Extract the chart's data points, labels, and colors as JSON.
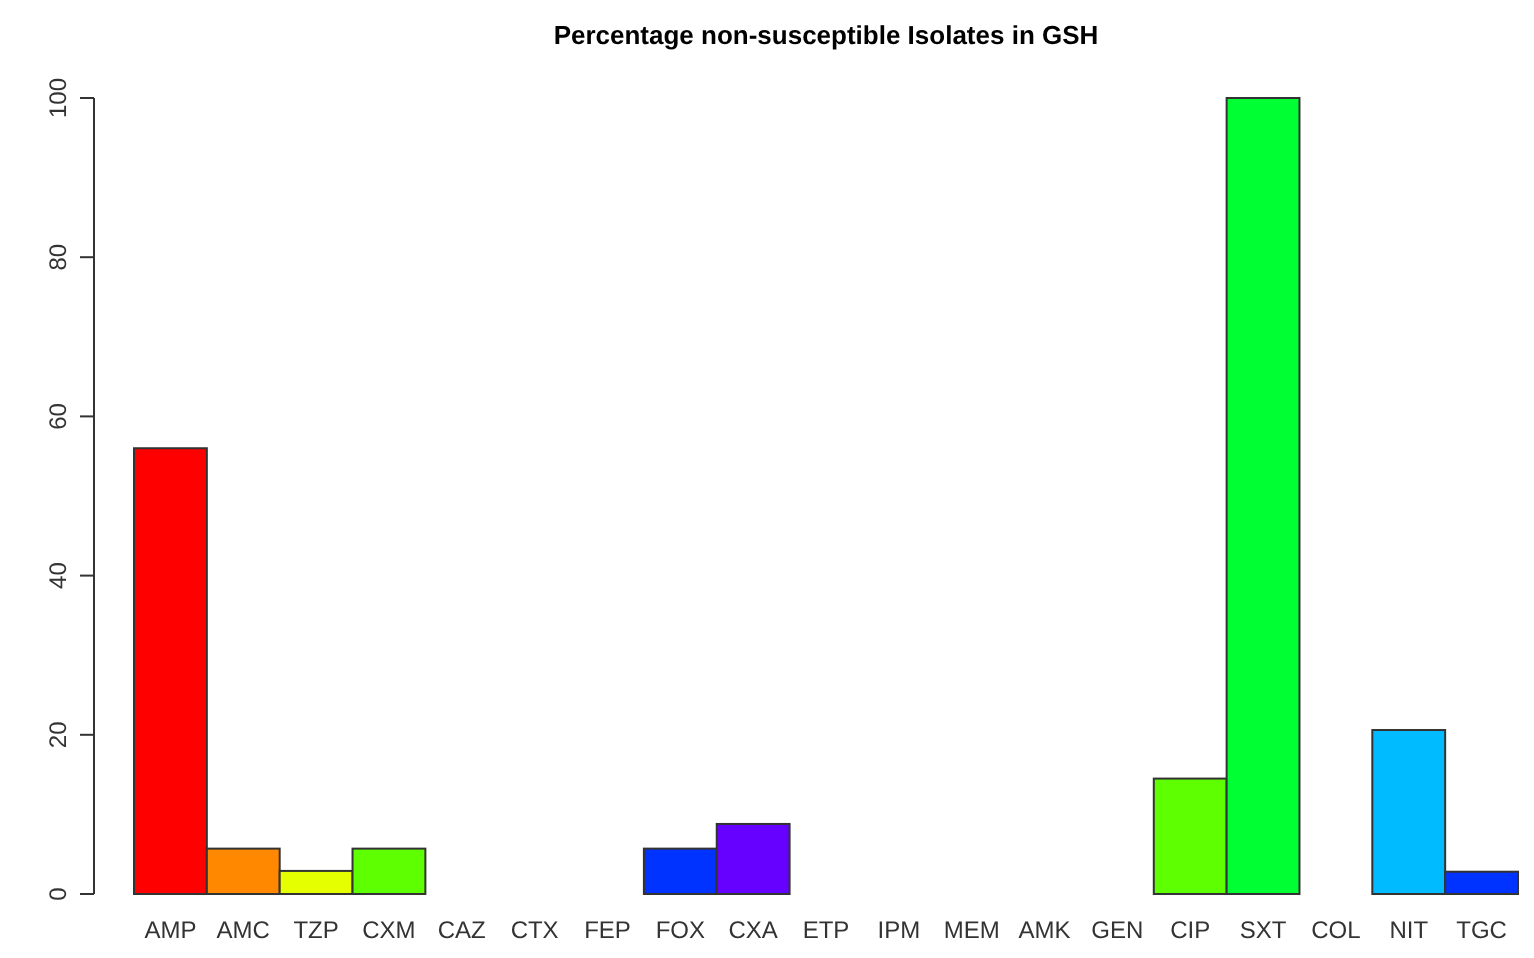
{
  "chart_data": {
    "type": "bar",
    "title": "Percentage non-susceptible Isolates in GSH",
    "categories": [
      "AMP",
      "AMC",
      "TZP",
      "CXM",
      "CAZ",
      "CTX",
      "FEP",
      "FOX",
      "CXA",
      "ETP",
      "IPM",
      "MEM",
      "AMK",
      "GEN",
      "CIP",
      "SXT",
      "COL",
      "NIT",
      "TGC"
    ],
    "values": [
      56.0,
      5.7,
      2.9,
      5.7,
      0,
      0,
      0,
      5.7,
      8.8,
      0,
      0,
      0,
      0,
      0,
      14.5,
      100,
      0,
      20.6,
      2.8
    ],
    "colors": [
      "#ff0000",
      "#ff8800",
      "#e5ff00",
      "#5eff00",
      null,
      null,
      null,
      "#0033ff",
      "#6600ff",
      null,
      null,
      null,
      null,
      null,
      "#5eff00",
      "#00ff33",
      null,
      "#00bbff",
      "#0033ff"
    ],
    "ylim": [
      0,
      100
    ],
    "yticks": [
      0,
      20,
      40,
      60,
      80,
      100
    ],
    "grid": false
  }
}
